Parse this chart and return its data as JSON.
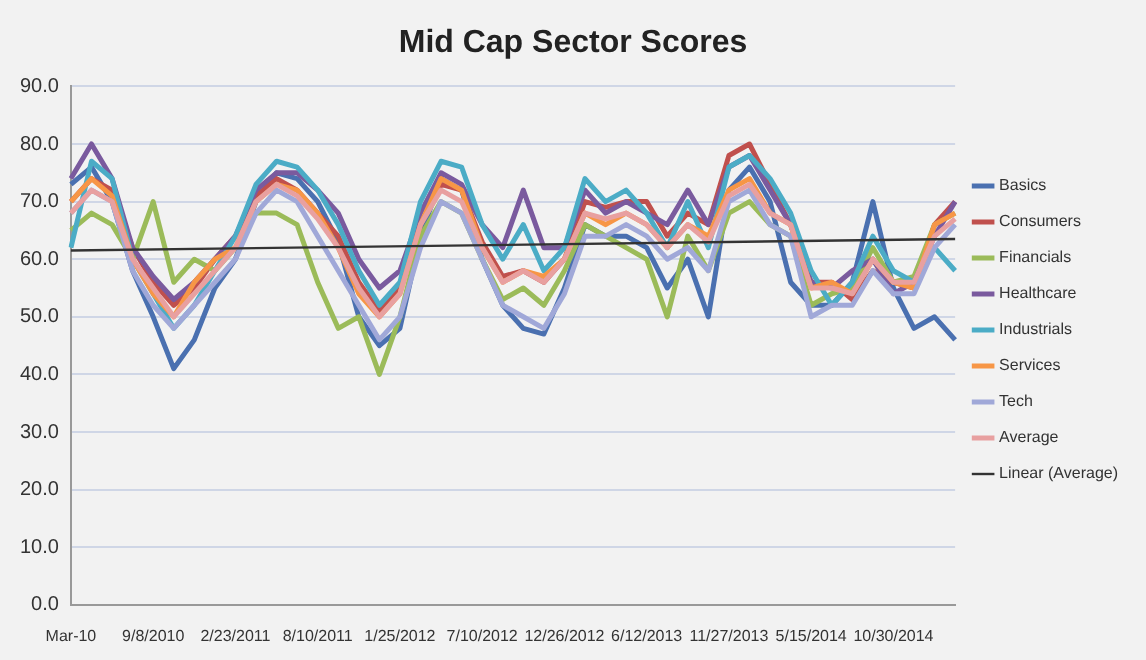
{
  "chart_data": {
    "type": "line",
    "title": "Mid Cap Sector Scores",
    "categories": [
      "Mar-10",
      null,
      null,
      null,
      "9/8/2010",
      null,
      null,
      null,
      "2/23/2011",
      null,
      null,
      null,
      "8/10/2011",
      null,
      null,
      null,
      "1/25/2012",
      null,
      null,
      null,
      "7/10/2012",
      null,
      null,
      null,
      "12/26/2012",
      null,
      null,
      null,
      "6/12/2013",
      null,
      null,
      null,
      "11/27/2013",
      null,
      null,
      null,
      "5/15/2014",
      null,
      null,
      null,
      "10/30/2014",
      null,
      null,
      null
    ],
    "series": [
      {
        "name": "Basics",
        "color": "#4a70b0",
        "values": [
          73,
          76,
          70,
          58,
          50,
          41,
          46,
          55,
          60,
          70,
          75,
          74,
          70,
          63,
          50,
          45,
          48,
          64,
          74,
          72,
          60,
          52,
          48,
          47,
          55,
          66,
          64,
          64,
          62,
          55,
          60,
          50,
          72,
          76,
          70,
          56,
          52,
          52,
          56,
          70,
          55,
          48,
          50,
          46
        ]
      },
      {
        "name": "Consumers",
        "color": "#c0504d",
        "values": [
          70,
          74,
          72,
          62,
          56,
          52,
          55,
          60,
          64,
          71,
          74,
          72,
          68,
          64,
          56,
          51,
          55,
          66,
          73,
          72,
          63,
          57,
          58,
          56,
          60,
          70,
          69,
          70,
          70,
          64,
          68,
          66,
          78,
          80,
          73,
          66,
          56,
          56,
          53,
          58,
          56,
          55,
          66,
          70
        ]
      },
      {
        "name": "Financials",
        "color": "#9bbb59",
        "values": [
          65,
          68,
          66,
          60,
          70,
          56,
          60,
          58,
          62,
          68,
          68,
          66,
          56,
          48,
          50,
          40,
          50,
          64,
          70,
          68,
          60,
          53,
          55,
          52,
          58,
          66,
          64,
          62,
          60,
          50,
          64,
          58,
          68,
          70,
          66,
          64,
          52,
          54,
          55,
          62,
          56,
          57,
          66,
          68
        ]
      },
      {
        "name": "Healthcare",
        "color": "#7a5a9e",
        "values": [
          74,
          80,
          74,
          62,
          57,
          53,
          56,
          60,
          64,
          72,
          75,
          75,
          72,
          68,
          60,
          55,
          58,
          68,
          75,
          73,
          66,
          62,
          72,
          62,
          62,
          72,
          68,
          70,
          68,
          66,
          72,
          66,
          76,
          78,
          72,
          66,
          56,
          55,
          58,
          60,
          54,
          56,
          64,
          70
        ]
      },
      {
        "name": "Industrials",
        "color": "#4bacc6",
        "values": [
          62,
          77,
          74,
          60,
          54,
          48,
          52,
          58,
          64,
          73,
          77,
          76,
          72,
          66,
          58,
          52,
          56,
          70,
          77,
          76,
          66,
          60,
          66,
          58,
          62,
          74,
          70,
          72,
          68,
          62,
          70,
          62,
          76,
          78,
          74,
          68,
          58,
          52,
          56,
          64,
          58,
          56,
          62,
          58
        ]
      },
      {
        "name": "Services",
        "color": "#f79646",
        "values": [
          70,
          74,
          71,
          60,
          54,
          50,
          56,
          60,
          62,
          70,
          73,
          72,
          68,
          62,
          54,
          50,
          54,
          66,
          74,
          72,
          62,
          56,
          58,
          57,
          60,
          68,
          66,
          68,
          66,
          62,
          66,
          64,
          72,
          74,
          68,
          66,
          55,
          56,
          54,
          60,
          56,
          55,
          66,
          68
        ]
      },
      {
        "name": "Tech",
        "color": "#a0a8d8",
        "values": [
          68,
          72,
          70,
          58,
          52,
          48,
          52,
          56,
          60,
          68,
          72,
          70,
          64,
          58,
          52,
          46,
          50,
          62,
          70,
          68,
          60,
          52,
          50,
          48,
          54,
          64,
          64,
          66,
          64,
          60,
          62,
          58,
          70,
          72,
          66,
          64,
          50,
          52,
          52,
          58,
          54,
          54,
          62,
          66
        ]
      },
      {
        "name": "Average",
        "color": "#e8a0a0",
        "values": [
          68,
          72,
          70,
          60,
          55,
          50,
          54,
          58,
          62,
          70,
          73,
          71,
          67,
          62,
          55,
          50,
          54,
          66,
          72,
          70,
          62,
          56,
          58,
          56,
          60,
          68,
          67,
          68,
          66,
          62,
          66,
          63,
          71,
          73,
          68,
          66,
          55,
          55,
          54,
          60,
          56,
          56,
          64,
          67
        ]
      },
      {
        "name": "Linear (Average)",
        "color": "#333333",
        "values": [
          61.5,
          null,
          null,
          null,
          null,
          null,
          null,
          null,
          null,
          null,
          null,
          null,
          null,
          null,
          null,
          null,
          null,
          null,
          null,
          null,
          null,
          null,
          null,
          null,
          null,
          null,
          null,
          null,
          null,
          null,
          null,
          null,
          null,
          null,
          null,
          null,
          null,
          null,
          null,
          null,
          null,
          null,
          null,
          63.5
        ]
      }
    ],
    "ylim": [
      0,
      90
    ],
    "yticks": [
      {
        "value": 0,
        "label": "0.0"
      },
      {
        "value": 10,
        "label": "10.0"
      },
      {
        "value": 20,
        "label": "20.0"
      },
      {
        "value": 30,
        "label": "30.0"
      },
      {
        "value": 40,
        "label": "40.0"
      },
      {
        "value": 50,
        "label": "50.0"
      },
      {
        "value": 60,
        "label": "60.0"
      },
      {
        "value": 70,
        "label": "70.0"
      },
      {
        "value": 80,
        "label": "80.0"
      },
      {
        "value": 90,
        "label": "90.0"
      }
    ],
    "grid": "y",
    "legend": "right",
    "marker": "none"
  }
}
